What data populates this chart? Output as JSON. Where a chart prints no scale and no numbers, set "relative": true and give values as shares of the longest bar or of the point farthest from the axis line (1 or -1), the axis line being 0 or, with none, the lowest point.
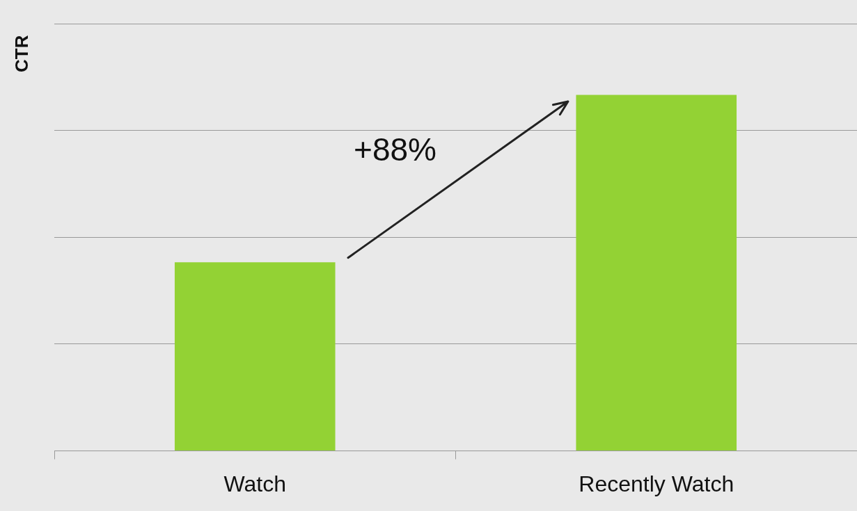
{
  "chart_data": {
    "type": "bar",
    "ylabel": "CTR",
    "categories": [
      "Watch",
      "Recently Watch"
    ],
    "values": [
      0.53,
      1
    ],
    "color": "#93d234",
    "relative": true,
    "grid": "y",
    "annotations": [
      "+88%"
    ]
  }
}
